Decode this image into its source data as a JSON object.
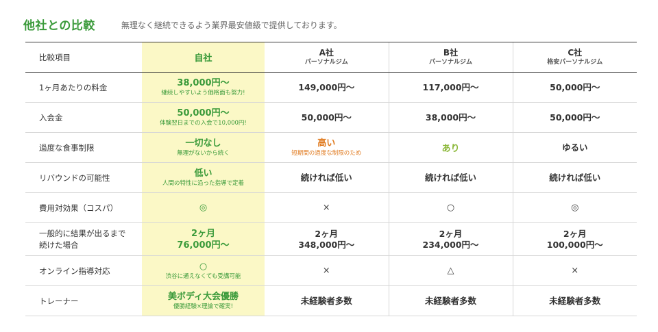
{
  "header": {
    "title": "他社との比較",
    "subtitle": "無理なく継続できるよう業界最安値級で提供しております。"
  },
  "table": {
    "columns": {
      "label": "比較項目",
      "own": "自社",
      "a_name": "A社",
      "a_sub": "パーソナルジム",
      "b_name": "B社",
      "b_sub": "パーソナルジム",
      "c_name": "C社",
      "c_sub": "格安パーソナルジム"
    },
    "rows": [
      {
        "label": "1ヶ月あたりの料金",
        "own_main": "38,000円〜",
        "own_note": "継続しやすいよう価格面も努力!",
        "a": "149,000円〜",
        "b": "117,000円〜",
        "c": "50,000円〜"
      },
      {
        "label": "入会金",
        "own_main": "50,000円〜",
        "own_note": "体験翌日までの入会で10,000円!",
        "a": "50,000円〜",
        "b": "38,000円〜",
        "c": "50,000円〜"
      },
      {
        "label": "過度な食事制限",
        "own_main": "一切なし",
        "own_note": "無理がないから続く",
        "a_main": "高い",
        "a_note": "短期間の過度な制限のため",
        "b": "あり",
        "c": "ゆるい"
      },
      {
        "label": "リバウンドの可能性",
        "own_main": "低い",
        "own_note": "人間の特性に沿った指導で定着",
        "a": "続ければ低い",
        "b": "続ければ低い",
        "c": "続ければ低い"
      },
      {
        "label": "費用対効果（コスパ）",
        "own": "◎",
        "a": "×",
        "b": "○",
        "c": "◎"
      },
      {
        "label_line1": "一般的に結果が出るまで",
        "label_line2": "続けた場合",
        "own_line1": "2ヶ月",
        "own_line2": "76,000円〜",
        "a_line1": "2ヶ月",
        "a_line2": "348,000円〜",
        "b_line1": "2ヶ月",
        "b_line2": "234,000円〜",
        "c_line1": "2ヶ月",
        "c_line2": "100,000円〜"
      },
      {
        "label": "オンライン指導対応",
        "own_main": "○",
        "own_note": "渋谷に通えなくても受講可能",
        "a": "×",
        "b": "△",
        "c": "×"
      },
      {
        "label": "トレーナー",
        "own_main": "美ボディ大会優勝",
        "own_note": "優勝経験×理論で確実!",
        "a": "未経験者多数",
        "b": "未経験者多数",
        "c": "未経験者多数"
      }
    ]
  }
}
